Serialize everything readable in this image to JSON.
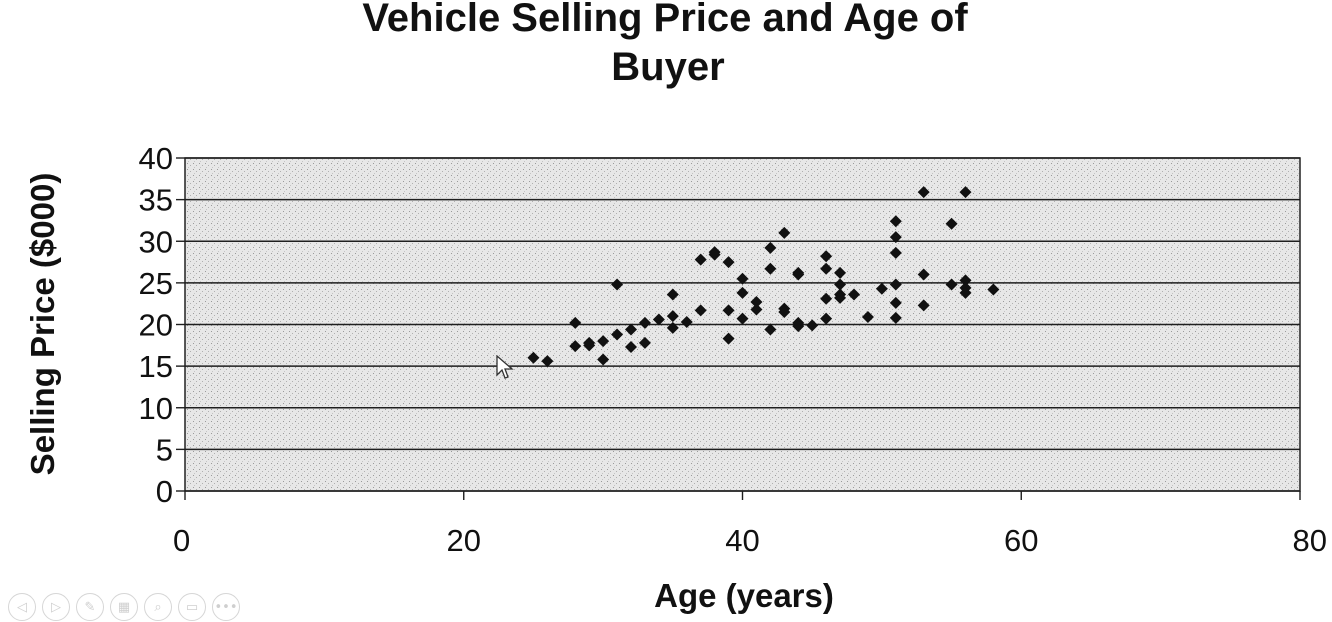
{
  "chart_data": {
    "type": "scatter",
    "title": [
      "Vehicle Selling Price and Age of",
      "Buyer"
    ],
    "xlabel": "Age (years)",
    "ylabel": "Selling Price ($000)",
    "xlim": [
      0,
      80
    ],
    "ylim": [
      0,
      40
    ],
    "xticks": [
      "0",
      "20",
      "40",
      "60",
      "80"
    ],
    "yticks": [
      "40",
      "35",
      "30",
      "25",
      "20",
      "15",
      "10",
      "5",
      "0"
    ],
    "grid": "horizontal",
    "legend": "none",
    "marker": "diamond",
    "marker_color": "#111111",
    "plot_background": "#e9e9e9",
    "points": [
      [
        25,
        16.0
      ],
      [
        26,
        15.6
      ],
      [
        28,
        20.2
      ],
      [
        28,
        17.4
      ],
      [
        29,
        17.8
      ],
      [
        29,
        17.5
      ],
      [
        30,
        18.0
      ],
      [
        30,
        15.8
      ],
      [
        31,
        24.8
      ],
      [
        31,
        18.8
      ],
      [
        32,
        19.4
      ],
      [
        32,
        17.3
      ],
      [
        33,
        17.8
      ],
      [
        33,
        20.2
      ],
      [
        34,
        20.6
      ],
      [
        35,
        23.6
      ],
      [
        35,
        21.0
      ],
      [
        35,
        19.6
      ],
      [
        36,
        20.3
      ],
      [
        37,
        27.8
      ],
      [
        37,
        21.7
      ],
      [
        38,
        28.7
      ],
      [
        38,
        28.4
      ],
      [
        39,
        27.5
      ],
      [
        39,
        21.7
      ],
      [
        39,
        18.3
      ],
      [
        40,
        25.5
      ],
      [
        40,
        23.8
      ],
      [
        40,
        20.7
      ],
      [
        41,
        22.7
      ],
      [
        41,
        21.8
      ],
      [
        42,
        29.2
      ],
      [
        42,
        26.7
      ],
      [
        42,
        19.4
      ],
      [
        43,
        31.0
      ],
      [
        43,
        21.9
      ],
      [
        43,
        21.5
      ],
      [
        44,
        26.2
      ],
      [
        44,
        26.0
      ],
      [
        44,
        20.2
      ],
      [
        44,
        19.8
      ],
      [
        45,
        19.9
      ],
      [
        46,
        28.2
      ],
      [
        46,
        26.7
      ],
      [
        46,
        23.1
      ],
      [
        46,
        20.7
      ],
      [
        47,
        26.2
      ],
      [
        47,
        24.8
      ],
      [
        47,
        23.6
      ],
      [
        47,
        23.2
      ],
      [
        48,
        23.6
      ],
      [
        49,
        20.9
      ],
      [
        50,
        24.3
      ],
      [
        51,
        32.4
      ],
      [
        51,
        30.5
      ],
      [
        51,
        28.6
      ],
      [
        51,
        24.8
      ],
      [
        51,
        22.6
      ],
      [
        51,
        20.8
      ],
      [
        53,
        35.9
      ],
      [
        53,
        26.0
      ],
      [
        53,
        22.3
      ],
      [
        55,
        32.1
      ],
      [
        55,
        24.8
      ],
      [
        56,
        35.9
      ],
      [
        56,
        25.3
      ],
      [
        56,
        24.4
      ],
      [
        56,
        23.8
      ],
      [
        58,
        24.2
      ]
    ]
  },
  "player_controls": [
    {
      "name": "previous",
      "glyph": "◁"
    },
    {
      "name": "next",
      "glyph": "▷"
    },
    {
      "name": "pen",
      "glyph": "✎"
    },
    {
      "name": "slides",
      "glyph": "▦"
    },
    {
      "name": "zoom",
      "glyph": "⌕"
    },
    {
      "name": "subtitles",
      "glyph": "▭"
    },
    {
      "name": "more",
      "glyph": "•••"
    }
  ]
}
